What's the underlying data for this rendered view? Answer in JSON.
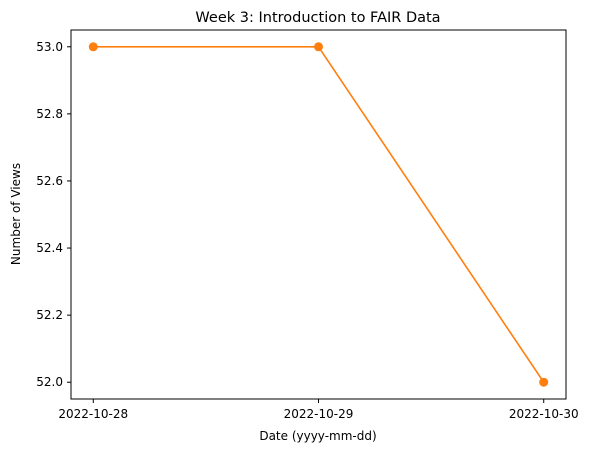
{
  "chart_data": {
    "type": "line",
    "title": "Week 3: Introduction to FAIR Data",
    "xlabel": "Date (yyyy-mm-dd)",
    "ylabel": "Number of Views",
    "x": [
      "2022-10-28",
      "2022-10-29",
      "2022-10-30"
    ],
    "series": [
      {
        "values": [
          53,
          53,
          52
        ],
        "color": "#ff7f0e",
        "marker": "circle"
      }
    ],
    "xticks": [
      "2022-10-28",
      "2022-10-29",
      "2022-10-30"
    ],
    "yticks": [
      "52.0",
      "52.2",
      "52.4",
      "52.6",
      "52.8",
      "53.0"
    ],
    "ylim": [
      51.95,
      53.05
    ],
    "grid": false,
    "legend": "none"
  }
}
